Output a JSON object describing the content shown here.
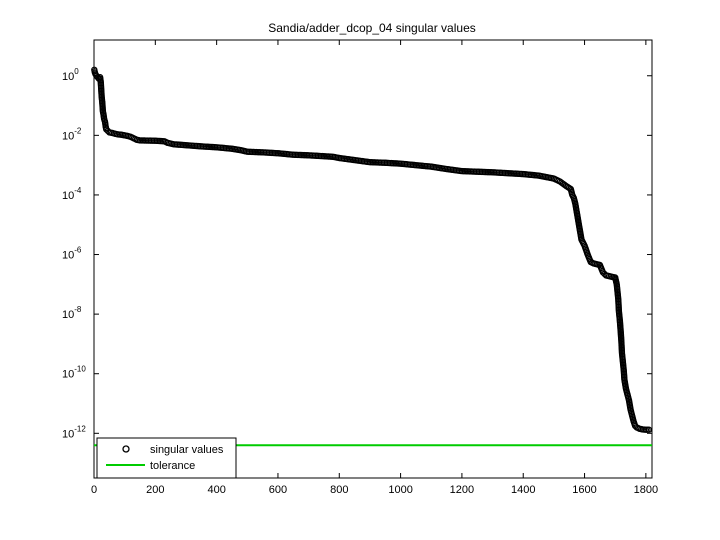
{
  "chart_data": {
    "type": "scatter",
    "title": "Sandia/adder_dcop_04 singular values",
    "xlabel": "",
    "ylabel": "",
    "xlim": [
      0,
      1820
    ],
    "ylim_log10": [
      -13.5,
      1.2
    ],
    "y_scale": "log",
    "grid": false,
    "legend_position": "bottom-left",
    "x_ticks": [
      0,
      200,
      400,
      600,
      800,
      1000,
      1200,
      1400,
      1600,
      1800
    ],
    "y_ticks": [
      {
        "base": "10",
        "exp": "0",
        "log10": 0
      },
      {
        "base": "10",
        "exp": "-2",
        "log10": -2
      },
      {
        "base": "10",
        "exp": "-4",
        "log10": -4
      },
      {
        "base": "10",
        "exp": "-6",
        "log10": -6
      },
      {
        "base": "10",
        "exp": "-8",
        "log10": -8
      },
      {
        "base": "10",
        "exp": "-10",
        "log10": -10
      },
      {
        "base": "10",
        "exp": "-12",
        "log10": -12
      }
    ],
    "series": [
      {
        "name": "singular values",
        "marker": "circle",
        "color": "#000000",
        "points_log10": [
          [
            1,
            0.2
          ],
          [
            3,
            0.1
          ],
          [
            5,
            0.05
          ],
          [
            8,
            0.0
          ],
          [
            12,
            -0.05
          ],
          [
            16,
            -0.1
          ],
          [
            20,
            -0.05
          ],
          [
            22,
            -0.2
          ],
          [
            25,
            -0.7
          ],
          [
            27,
            -0.9
          ],
          [
            29,
            -1.2
          ],
          [
            31,
            -1.3
          ],
          [
            33,
            -1.45
          ],
          [
            36,
            -1.55
          ],
          [
            38,
            -1.7
          ],
          [
            40,
            -1.8
          ],
          [
            45,
            -1.85
          ],
          [
            50,
            -1.9
          ],
          [
            60,
            -1.92
          ],
          [
            70,
            -1.95
          ],
          [
            80,
            -1.97
          ],
          [
            90,
            -1.98
          ],
          [
            100,
            -2.0
          ],
          [
            110,
            -2.02
          ],
          [
            120,
            -2.05
          ],
          [
            130,
            -2.1
          ],
          [
            140,
            -2.15
          ],
          [
            150,
            -2.17
          ],
          [
            200,
            -2.18
          ],
          [
            230,
            -2.2
          ],
          [
            240,
            -2.25
          ],
          [
            260,
            -2.3
          ],
          [
            300,
            -2.33
          ],
          [
            350,
            -2.37
          ],
          [
            400,
            -2.4
          ],
          [
            450,
            -2.45
          ],
          [
            480,
            -2.5
          ],
          [
            500,
            -2.55
          ],
          [
            550,
            -2.57
          ],
          [
            600,
            -2.6
          ],
          [
            620,
            -2.62
          ],
          [
            650,
            -2.65
          ],
          [
            700,
            -2.67
          ],
          [
            750,
            -2.7
          ],
          [
            780,
            -2.72
          ],
          [
            800,
            -2.76
          ],
          [
            850,
            -2.83
          ],
          [
            900,
            -2.9
          ],
          [
            950,
            -2.92
          ],
          [
            1000,
            -2.95
          ],
          [
            1050,
            -3.0
          ],
          [
            1100,
            -3.05
          ],
          [
            1150,
            -3.13
          ],
          [
            1200,
            -3.2
          ],
          [
            1250,
            -3.22
          ],
          [
            1300,
            -3.24
          ],
          [
            1350,
            -3.27
          ],
          [
            1400,
            -3.3
          ],
          [
            1450,
            -3.35
          ],
          [
            1500,
            -3.45
          ],
          [
            1520,
            -3.55
          ],
          [
            1540,
            -3.7
          ],
          [
            1555,
            -3.8
          ],
          [
            1560,
            -4.0
          ],
          [
            1565,
            -4.1
          ],
          [
            1570,
            -4.3
          ],
          [
            1575,
            -4.6
          ],
          [
            1580,
            -4.9
          ],
          [
            1585,
            -5.2
          ],
          [
            1590,
            -5.5
          ],
          [
            1600,
            -5.7
          ],
          [
            1610,
            -6.0
          ],
          [
            1620,
            -6.25
          ],
          [
            1630,
            -6.3
          ],
          [
            1650,
            -6.35
          ],
          [
            1660,
            -6.6
          ],
          [
            1670,
            -6.7
          ],
          [
            1690,
            -6.75
          ],
          [
            1700,
            -6.77
          ],
          [
            1705,
            -7.0
          ],
          [
            1710,
            -7.5
          ],
          [
            1712,
            -7.9
          ],
          [
            1715,
            -8.2
          ],
          [
            1718,
            -8.6
          ],
          [
            1720,
            -8.9
          ],
          [
            1722,
            -9.3
          ],
          [
            1725,
            -9.6
          ],
          [
            1728,
            -9.9
          ],
          [
            1730,
            -10.2
          ],
          [
            1735,
            -10.5
          ],
          [
            1740,
            -10.7
          ],
          [
            1745,
            -10.9
          ],
          [
            1750,
            -11.2
          ],
          [
            1755,
            -11.4
          ],
          [
            1760,
            -11.6
          ],
          [
            1765,
            -11.75
          ],
          [
            1770,
            -11.8
          ],
          [
            1780,
            -11.85
          ],
          [
            1790,
            -11.87
          ],
          [
            1800,
            -11.88
          ],
          [
            1810,
            -11.88
          ]
        ]
      },
      {
        "name": "tolerance",
        "marker": "line",
        "color": "#00cc00",
        "value_log10": -12.4
      }
    ]
  }
}
